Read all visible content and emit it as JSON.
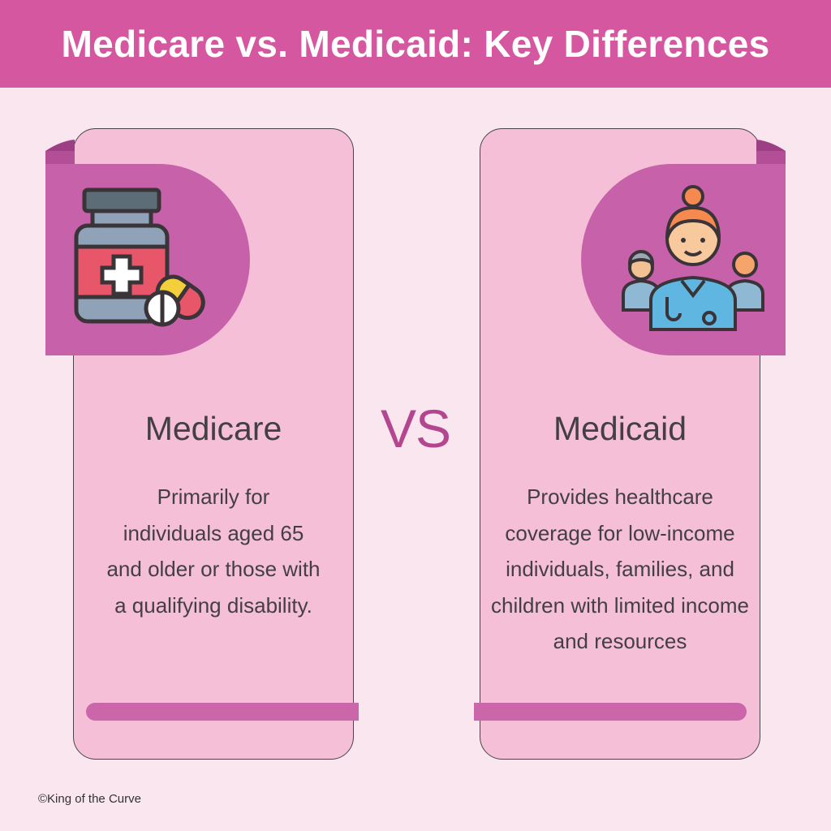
{
  "header": {
    "title": "Medicare vs. Medicaid: Key Differences"
  },
  "vs_label": "VS",
  "cards": [
    {
      "title": "Medicare",
      "description": "Primarily for individuals aged 65 and older or those with a qualifying disability.",
      "icon": "medicine-bottle-icon"
    },
    {
      "title": "Medicaid",
      "description": "Provides healthcare coverage for low-income individuals, families, and children with limited income and resources",
      "icon": "medical-staff-icon"
    }
  ],
  "footer": {
    "credit": "©King of the Curve"
  },
  "colors": {
    "header": "#d457a0",
    "card": "#f5bfd8",
    "ribbon": "#c762aa",
    "accent": "#b3468e",
    "background": "#f9e6ef"
  }
}
